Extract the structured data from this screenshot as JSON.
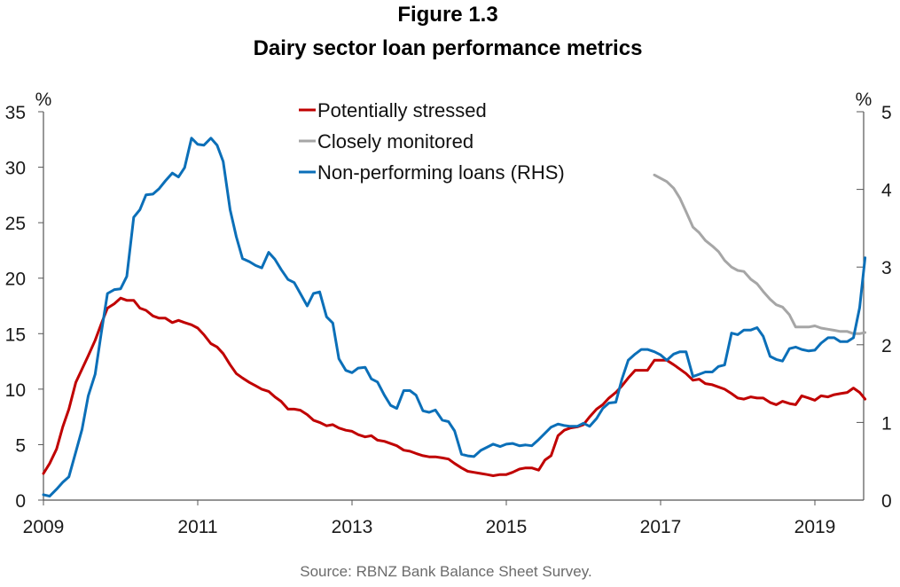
{
  "chart_data": {
    "type": "line",
    "title": "Figure 1.3",
    "subtitle": "Dairy sector loan performance metrics",
    "source": "Source: RBNZ Bank Balance Sheet Survey.",
    "xlabel": "",
    "xlim": [
      2009,
      2019.65
    ],
    "x_ticks": [
      2009,
      2011,
      2013,
      2015,
      2017,
      2019
    ],
    "x_tick_labels": [
      "2009",
      "2011",
      "2013",
      "2015",
      "2017",
      "2019"
    ],
    "y_left": {
      "label": "%",
      "ylim": [
        0,
        35
      ],
      "ticks": [
        0,
        5,
        10,
        15,
        20,
        25,
        30,
        35
      ],
      "tick_labels": [
        "0",
        "5",
        "10",
        "15",
        "20",
        "25",
        "30",
        "35"
      ]
    },
    "y_right": {
      "label": "%",
      "ylim": [
        0,
        5
      ],
      "ticks": [
        0,
        1,
        2,
        3,
        4,
        5
      ],
      "tick_labels": [
        "0",
        "1",
        "2",
        "3",
        "4",
        "5"
      ]
    },
    "grid": false,
    "legend": {
      "placement": "top-center"
    },
    "series": [
      {
        "name": "Potentially stressed",
        "axis": "left",
        "color": "#c00000",
        "points": [
          [
            2009.0,
            2.4
          ],
          [
            2009.08,
            3.3
          ],
          [
            2009.17,
            4.6
          ],
          [
            2009.25,
            6.6
          ],
          [
            2009.33,
            8.2
          ],
          [
            2009.42,
            10.6
          ],
          [
            2009.5,
            11.8
          ],
          [
            2009.58,
            13.0
          ],
          [
            2009.67,
            14.4
          ],
          [
            2009.75,
            15.9
          ],
          [
            2009.83,
            17.3
          ],
          [
            2009.92,
            17.7
          ],
          [
            2010.0,
            18.2
          ],
          [
            2010.08,
            18.0
          ],
          [
            2010.17,
            18.0
          ],
          [
            2010.25,
            17.3
          ],
          [
            2010.33,
            17.1
          ],
          [
            2010.42,
            16.6
          ],
          [
            2010.5,
            16.4
          ],
          [
            2010.58,
            16.4
          ],
          [
            2010.67,
            16.0
          ],
          [
            2010.75,
            16.2
          ],
          [
            2010.83,
            16.0
          ],
          [
            2010.92,
            15.8
          ],
          [
            2011.0,
            15.5
          ],
          [
            2011.08,
            14.9
          ],
          [
            2011.17,
            14.1
          ],
          [
            2011.25,
            13.8
          ],
          [
            2011.33,
            13.2
          ],
          [
            2011.42,
            12.2
          ],
          [
            2011.5,
            11.4
          ],
          [
            2011.58,
            11.0
          ],
          [
            2011.67,
            10.6
          ],
          [
            2011.75,
            10.3
          ],
          [
            2011.83,
            10.0
          ],
          [
            2011.92,
            9.8
          ],
          [
            2012.0,
            9.3
          ],
          [
            2012.08,
            8.9
          ],
          [
            2012.17,
            8.2
          ],
          [
            2012.25,
            8.2
          ],
          [
            2012.33,
            8.1
          ],
          [
            2012.42,
            7.7
          ],
          [
            2012.5,
            7.2
          ],
          [
            2012.58,
            7.0
          ],
          [
            2012.67,
            6.7
          ],
          [
            2012.75,
            6.8
          ],
          [
            2012.83,
            6.5
          ],
          [
            2012.92,
            6.3
          ],
          [
            2013.0,
            6.2
          ],
          [
            2013.08,
            5.9
          ],
          [
            2013.17,
            5.7
          ],
          [
            2013.25,
            5.8
          ],
          [
            2013.33,
            5.4
          ],
          [
            2013.42,
            5.3
          ],
          [
            2013.5,
            5.1
          ],
          [
            2013.58,
            4.9
          ],
          [
            2013.67,
            4.5
          ],
          [
            2013.75,
            4.4
          ],
          [
            2013.83,
            4.2
          ],
          [
            2013.92,
            4.0
          ],
          [
            2014.0,
            3.9
          ],
          [
            2014.08,
            3.9
          ],
          [
            2014.17,
            3.8
          ],
          [
            2014.25,
            3.7
          ],
          [
            2014.33,
            3.3
          ],
          [
            2014.42,
            2.9
          ],
          [
            2014.5,
            2.6
          ],
          [
            2014.58,
            2.5
          ],
          [
            2014.67,
            2.4
          ],
          [
            2014.75,
            2.3
          ],
          [
            2014.83,
            2.2
          ],
          [
            2014.92,
            2.3
          ],
          [
            2015.0,
            2.3
          ],
          [
            2015.08,
            2.5
          ],
          [
            2015.17,
            2.8
          ],
          [
            2015.25,
            2.9
          ],
          [
            2015.33,
            2.9
          ],
          [
            2015.42,
            2.7
          ],
          [
            2015.5,
            3.6
          ],
          [
            2015.58,
            4.0
          ],
          [
            2015.67,
            5.8
          ],
          [
            2015.75,
            6.3
          ],
          [
            2015.83,
            6.5
          ],
          [
            2015.92,
            6.6
          ],
          [
            2016.0,
            6.8
          ],
          [
            2016.08,
            7.5
          ],
          [
            2016.17,
            8.2
          ],
          [
            2016.25,
            8.6
          ],
          [
            2016.33,
            9.2
          ],
          [
            2016.42,
            9.7
          ],
          [
            2016.5,
            10.3
          ],
          [
            2016.58,
            11.0
          ],
          [
            2016.67,
            11.7
          ],
          [
            2016.75,
            11.7
          ],
          [
            2016.83,
            11.7
          ],
          [
            2016.92,
            12.6
          ],
          [
            2017.0,
            12.6
          ],
          [
            2017.08,
            12.6
          ],
          [
            2017.17,
            12.2
          ],
          [
            2017.25,
            11.8
          ],
          [
            2017.33,
            11.4
          ],
          [
            2017.42,
            10.8
          ],
          [
            2017.5,
            10.9
          ],
          [
            2017.58,
            10.5
          ],
          [
            2017.67,
            10.4
          ],
          [
            2017.75,
            10.2
          ],
          [
            2017.83,
            10.0
          ],
          [
            2017.92,
            9.6
          ],
          [
            2018.0,
            9.2
          ],
          [
            2018.08,
            9.1
          ],
          [
            2018.17,
            9.3
          ],
          [
            2018.25,
            9.2
          ],
          [
            2018.33,
            9.2
          ],
          [
            2018.42,
            8.8
          ],
          [
            2018.5,
            8.6
          ],
          [
            2018.58,
            8.9
          ],
          [
            2018.67,
            8.7
          ],
          [
            2018.75,
            8.6
          ],
          [
            2018.83,
            9.4
          ],
          [
            2018.92,
            9.2
          ],
          [
            2019.0,
            9.0
          ],
          [
            2019.08,
            9.4
          ],
          [
            2019.17,
            9.3
          ],
          [
            2019.25,
            9.5
          ],
          [
            2019.33,
            9.6
          ],
          [
            2019.42,
            9.7
          ],
          [
            2019.5,
            10.1
          ],
          [
            2019.58,
            9.7
          ],
          [
            2019.65,
            9.1
          ]
        ]
      },
      {
        "name": "Closely monitored",
        "axis": "left",
        "color": "#a6a6a6",
        "points": [
          [
            2016.92,
            29.3
          ],
          [
            2017.0,
            29.0
          ],
          [
            2017.08,
            28.7
          ],
          [
            2017.17,
            28.1
          ],
          [
            2017.25,
            27.2
          ],
          [
            2017.33,
            26.0
          ],
          [
            2017.42,
            24.6
          ],
          [
            2017.5,
            24.1
          ],
          [
            2017.58,
            23.4
          ],
          [
            2017.67,
            22.9
          ],
          [
            2017.75,
            22.4
          ],
          [
            2017.83,
            21.6
          ],
          [
            2017.92,
            21.0
          ],
          [
            2018.0,
            20.7
          ],
          [
            2018.08,
            20.6
          ],
          [
            2018.17,
            19.9
          ],
          [
            2018.25,
            19.5
          ],
          [
            2018.33,
            18.8
          ],
          [
            2018.42,
            18.1
          ],
          [
            2018.5,
            17.6
          ],
          [
            2018.58,
            17.4
          ],
          [
            2018.67,
            16.7
          ],
          [
            2018.75,
            15.6
          ],
          [
            2018.83,
            15.6
          ],
          [
            2018.92,
            15.6
          ],
          [
            2019.0,
            15.7
          ],
          [
            2019.08,
            15.5
          ],
          [
            2019.17,
            15.4
          ],
          [
            2019.25,
            15.3
          ],
          [
            2019.33,
            15.2
          ],
          [
            2019.42,
            15.2
          ],
          [
            2019.5,
            15.0
          ],
          [
            2019.58,
            15.0
          ],
          [
            2019.65,
            15.1
          ]
        ]
      },
      {
        "name": "Non-performing loans (RHS)",
        "axis": "right",
        "color": "#0b6fb8",
        "points": [
          [
            2009.0,
            0.07
          ],
          [
            2009.08,
            0.05
          ],
          [
            2009.17,
            0.14
          ],
          [
            2009.25,
            0.23
          ],
          [
            2009.33,
            0.3
          ],
          [
            2009.42,
            0.62
          ],
          [
            2009.5,
            0.91
          ],
          [
            2009.58,
            1.34
          ],
          [
            2009.67,
            1.62
          ],
          [
            2009.75,
            2.16
          ],
          [
            2009.83,
            2.66
          ],
          [
            2009.92,
            2.71
          ],
          [
            2010.0,
            2.72
          ],
          [
            2010.08,
            2.88
          ],
          [
            2010.17,
            3.64
          ],
          [
            2010.25,
            3.74
          ],
          [
            2010.33,
            3.93
          ],
          [
            2010.42,
            3.94
          ],
          [
            2010.5,
            4.01
          ],
          [
            2010.58,
            4.11
          ],
          [
            2010.67,
            4.21
          ],
          [
            2010.75,
            4.16
          ],
          [
            2010.83,
            4.28
          ],
          [
            2010.92,
            4.66
          ],
          [
            2011.0,
            4.58
          ],
          [
            2011.08,
            4.57
          ],
          [
            2011.17,
            4.66
          ],
          [
            2011.25,
            4.57
          ],
          [
            2011.33,
            4.36
          ],
          [
            2011.42,
            3.74
          ],
          [
            2011.5,
            3.39
          ],
          [
            2011.58,
            3.11
          ],
          [
            2011.67,
            3.07
          ],
          [
            2011.75,
            3.02
          ],
          [
            2011.83,
            2.99
          ],
          [
            2011.92,
            3.19
          ],
          [
            2012.0,
            3.1
          ],
          [
            2012.08,
            2.97
          ],
          [
            2012.17,
            2.84
          ],
          [
            2012.25,
            2.8
          ],
          [
            2012.33,
            2.66
          ],
          [
            2012.42,
            2.5
          ],
          [
            2012.5,
            2.66
          ],
          [
            2012.58,
            2.68
          ],
          [
            2012.67,
            2.36
          ],
          [
            2012.75,
            2.28
          ],
          [
            2012.83,
            1.82
          ],
          [
            2012.92,
            1.67
          ],
          [
            2013.0,
            1.64
          ],
          [
            2013.08,
            1.7
          ],
          [
            2013.17,
            1.71
          ],
          [
            2013.25,
            1.56
          ],
          [
            2013.33,
            1.52
          ],
          [
            2013.42,
            1.35
          ],
          [
            2013.5,
            1.22
          ],
          [
            2013.58,
            1.18
          ],
          [
            2013.67,
            1.41
          ],
          [
            2013.75,
            1.41
          ],
          [
            2013.83,
            1.35
          ],
          [
            2013.92,
            1.15
          ],
          [
            2014.0,
            1.13
          ],
          [
            2014.08,
            1.16
          ],
          [
            2014.17,
            1.03
          ],
          [
            2014.25,
            1.01
          ],
          [
            2014.33,
            0.89
          ],
          [
            2014.42,
            0.59
          ],
          [
            2014.5,
            0.57
          ],
          [
            2014.58,
            0.56
          ],
          [
            2014.67,
            0.64
          ],
          [
            2014.75,
            0.68
          ],
          [
            2014.83,
            0.72
          ],
          [
            2014.92,
            0.69
          ],
          [
            2015.0,
            0.72
          ],
          [
            2015.08,
            0.73
          ],
          [
            2015.17,
            0.7
          ],
          [
            2015.25,
            0.71
          ],
          [
            2015.33,
            0.7
          ],
          [
            2015.42,
            0.78
          ],
          [
            2015.5,
            0.86
          ],
          [
            2015.58,
            0.94
          ],
          [
            2015.67,
            0.98
          ],
          [
            2015.75,
            0.96
          ],
          [
            2015.83,
            0.95
          ],
          [
            2015.92,
            0.95
          ],
          [
            2016.0,
            0.99
          ],
          [
            2016.08,
            0.95
          ],
          [
            2016.17,
            1.05
          ],
          [
            2016.25,
            1.18
          ],
          [
            2016.33,
            1.25
          ],
          [
            2016.42,
            1.26
          ],
          [
            2016.5,
            1.56
          ],
          [
            2016.58,
            1.8
          ],
          [
            2016.67,
            1.88
          ],
          [
            2016.75,
            1.94
          ],
          [
            2016.83,
            1.94
          ],
          [
            2016.92,
            1.91
          ],
          [
            2017.0,
            1.87
          ],
          [
            2017.08,
            1.8
          ],
          [
            2017.17,
            1.88
          ],
          [
            2017.25,
            1.91
          ],
          [
            2017.33,
            1.91
          ],
          [
            2017.42,
            1.59
          ],
          [
            2017.5,
            1.62
          ],
          [
            2017.58,
            1.65
          ],
          [
            2017.67,
            1.65
          ],
          [
            2017.75,
            1.72
          ],
          [
            2017.83,
            1.74
          ],
          [
            2017.92,
            2.15
          ],
          [
            2018.0,
            2.13
          ],
          [
            2018.08,
            2.19
          ],
          [
            2018.17,
            2.19
          ],
          [
            2018.25,
            2.22
          ],
          [
            2018.33,
            2.11
          ],
          [
            2018.42,
            1.85
          ],
          [
            2018.5,
            1.81
          ],
          [
            2018.58,
            1.79
          ],
          [
            2018.67,
            1.95
          ],
          [
            2018.75,
            1.97
          ],
          [
            2018.83,
            1.94
          ],
          [
            2018.92,
            1.92
          ],
          [
            2019.0,
            1.93
          ],
          [
            2019.08,
            2.02
          ],
          [
            2019.17,
            2.09
          ],
          [
            2019.25,
            2.09
          ],
          [
            2019.33,
            2.04
          ],
          [
            2019.42,
            2.04
          ],
          [
            2019.5,
            2.09
          ],
          [
            2019.58,
            2.48
          ],
          [
            2019.65,
            3.12
          ]
        ]
      }
    ]
  }
}
